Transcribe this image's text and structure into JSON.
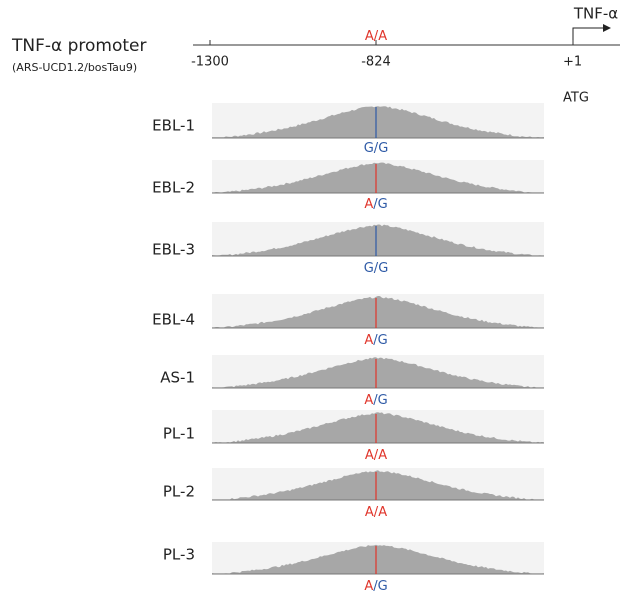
{
  "header": {
    "gene": "TNF-α",
    "title": "TNF-α promoter",
    "assembly": "(ARS-UCD1.2/bosTau9)",
    "reference_genotype": [
      "A",
      "/",
      "A"
    ],
    "ticks": [
      "-1300",
      "-824",
      "+1"
    ],
    "start_codon": "ATG"
  },
  "allele_colors": {
    "A": "#e0352b",
    "G": "#2e5aa6"
  },
  "tracks": [
    {
      "name": "EBL-1",
      "genotype": [
        "G",
        "/",
        "G"
      ]
    },
    {
      "name": "EBL-2",
      "genotype": [
        "A",
        "/",
        "G"
      ]
    },
    {
      "name": "EBL-3",
      "genotype": [
        "G",
        "/",
        "G"
      ]
    },
    {
      "name": "EBL-4",
      "genotype": [
        "A",
        "/",
        "G"
      ]
    },
    {
      "name": "AS-1",
      "genotype": [
        "A",
        "/",
        "G"
      ]
    },
    {
      "name": "PL-1",
      "genotype": [
        "A",
        "/",
        "A"
      ]
    },
    {
      "name": "PL-2",
      "genotype": [
        "A",
        "/",
        "A"
      ]
    },
    {
      "name": "PL-3",
      "genotype": [
        "A",
        "/",
        "G"
      ]
    }
  ]
}
